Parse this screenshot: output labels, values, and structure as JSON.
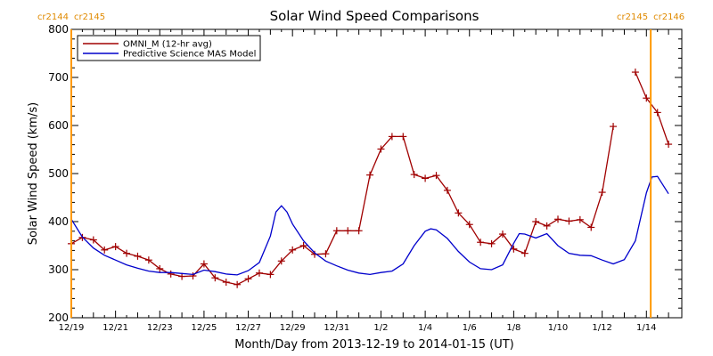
{
  "chart_data": {
    "type": "line",
    "title": "Solar Wind Speed Comparisons",
    "xlabel": "Month/Day from 2013-12-19 to 2014-01-15 (UT)",
    "ylabel": "Solar Wind Speed (km/s)",
    "xlim": [
      "2013-12-19",
      "2014-01-15"
    ],
    "ylim": [
      200,
      800
    ],
    "yticks": [
      200,
      300,
      400,
      500,
      600,
      700,
      800
    ],
    "xticks": [
      {
        "date": "2013-12-19",
        "label": "12/19"
      },
      {
        "date": "2013-12-21",
        "label": "12/21"
      },
      {
        "date": "2013-12-23",
        "label": "12/23"
      },
      {
        "date": "2013-12-25",
        "label": "12/25"
      },
      {
        "date": "2013-12-27",
        "label": "12/27"
      },
      {
        "date": "2013-12-29",
        "label": "12/29"
      },
      {
        "date": "2013-12-31",
        "label": "12/31"
      },
      {
        "date": "2014-01-02",
        "label": "1/2"
      },
      {
        "date": "2014-01-04",
        "label": "1/4"
      },
      {
        "date": "2014-01-06",
        "label": "1/6"
      },
      {
        "date": "2014-01-08",
        "label": "1/8"
      },
      {
        "date": "2014-01-10",
        "label": "1/10"
      },
      {
        "date": "2014-01-12",
        "label": "1/12"
      },
      {
        "date": "2014-01-14",
        "label": "1/14"
      }
    ],
    "legend_position": "top-left",
    "carrington_markers": [
      {
        "date": "2013-12-19",
        "label_left": "cr2144",
        "label_right": "cr2145",
        "side": "left"
      },
      {
        "date": "2014-01-15",
        "label_left": "cr2145",
        "label_right": "cr2146",
        "side": "right"
      }
    ],
    "series": [
      {
        "name": "OMNI_M (12-hr avg)",
        "color": "#a00000",
        "marker": "plus",
        "segments": [
          [
            [
              "2013-12-19 00:00",
              354
            ],
            [
              "2013-12-19 12:00",
              367
            ],
            [
              "2013-12-20 00:00",
              362
            ],
            [
              "2013-12-20 12:00",
              341
            ],
            [
              "2013-12-21 00:00",
              348
            ],
            [
              "2013-12-21 12:00",
              334
            ],
            [
              "2013-12-22 00:00",
              328
            ],
            [
              "2013-12-22 12:00",
              320
            ],
            [
              "2013-12-23 00:00",
              302
            ],
            [
              "2013-12-23 12:00",
              291
            ],
            [
              "2013-12-24 00:00",
              286
            ],
            [
              "2013-12-24 12:00",
              287
            ],
            [
              "2013-12-25 00:00",
              312
            ],
            [
              "2013-12-25 12:00",
              283
            ],
            [
              "2013-12-26 00:00",
              274
            ],
            [
              "2013-12-26 12:00",
              269
            ],
            [
              "2013-12-27 00:00",
              281
            ],
            [
              "2013-12-27 12:00",
              293
            ],
            [
              "2013-12-28 00:00",
              290
            ],
            [
              "2013-12-28 12:00",
              318
            ],
            [
              "2013-12-29 00:00",
              341
            ],
            [
              "2013-12-29 12:00",
              350
            ],
            [
              "2013-12-30 00:00",
              332
            ],
            [
              "2013-12-30 12:00",
              333
            ],
            [
              "2013-12-31 00:00",
              381
            ],
            [
              "2013-12-31 12:00",
              381
            ],
            [
              "2014-01-01 00:00",
              381
            ],
            [
              "2014-01-01 12:00",
              497
            ],
            [
              "2014-01-02 00:00",
              551
            ],
            [
              "2014-01-02 12:00",
              577
            ],
            [
              "2014-01-03 00:00",
              577
            ],
            [
              "2014-01-03 12:00",
              498
            ],
            [
              "2014-01-04 00:00",
              490
            ],
            [
              "2014-01-04 12:00",
              496
            ],
            [
              "2014-01-05 00:00",
              465
            ],
            [
              "2014-01-05 12:00",
              418
            ],
            [
              "2014-01-06 00:00",
              394
            ],
            [
              "2014-01-06 12:00",
              357
            ],
            [
              "2014-01-07 00:00",
              354
            ],
            [
              "2014-01-07 12:00",
              374
            ],
            [
              "2014-01-08 00:00",
              343
            ],
            [
              "2014-01-08 12:00",
              334
            ],
            [
              "2014-01-09 00:00",
              400
            ],
            [
              "2014-01-09 12:00",
              391
            ],
            [
              "2014-01-10 00:00",
              405
            ],
            [
              "2014-01-10 12:00",
              401
            ],
            [
              "2014-01-11 00:00",
              404
            ],
            [
              "2014-01-11 12:00",
              388
            ],
            [
              "2014-01-12 00:00",
              461
            ],
            [
              "2014-01-12 12:00",
              598
            ]
          ],
          [
            [
              "2014-01-13 12:00",
              711
            ],
            [
              "2014-01-14 00:00",
              657
            ],
            [
              "2014-01-14 12:00",
              627
            ],
            [
              "2014-01-15 00:00",
              561
            ]
          ]
        ]
      },
      {
        "name": "Predictive Science MAS Model",
        "color": "#0000cc",
        "marker": "none",
        "segments": [
          [
            [
              "2013-12-19 00:00",
              405
            ],
            [
              "2013-12-19 12:00",
              368
            ],
            [
              "2013-12-20 00:00",
              345
            ],
            [
              "2013-12-20 12:00",
              330
            ],
            [
              "2013-12-21 00:00",
              320
            ],
            [
              "2013-12-21 12:00",
              310
            ],
            [
              "2013-12-22 00:00",
              303
            ],
            [
              "2013-12-22 12:00",
              297
            ],
            [
              "2013-12-23 00:00",
              294
            ],
            [
              "2013-12-23 12:00",
              294
            ],
            [
              "2013-12-24 00:00",
              292
            ],
            [
              "2013-12-24 12:00",
              290
            ],
            [
              "2013-12-25 00:00",
              299
            ],
            [
              "2013-12-25 12:00",
              296
            ],
            [
              "2013-12-26 00:00",
              291
            ],
            [
              "2013-12-26 12:00",
              289
            ],
            [
              "2013-12-27 00:00",
              298
            ],
            [
              "2013-12-27 12:00",
              315
            ],
            [
              "2013-12-28 00:00",
              370
            ],
            [
              "2013-12-28 06:00",
              420
            ],
            [
              "2013-12-28 12:00",
              433
            ],
            [
              "2013-12-28 18:00",
              420
            ],
            [
              "2013-12-29 00:00",
              395
            ],
            [
              "2013-12-29 12:00",
              360
            ],
            [
              "2013-12-30 00:00",
              335
            ],
            [
              "2013-12-30 12:00",
              318
            ],
            [
              "2013-12-31 00:00",
              308
            ],
            [
              "2013-12-31 12:00",
              299
            ],
            [
              "2014-01-01 00:00",
              293
            ],
            [
              "2014-01-01 12:00",
              290
            ],
            [
              "2014-01-02 00:00",
              294
            ],
            [
              "2014-01-02 12:00",
              297
            ],
            [
              "2014-01-03 00:00",
              312
            ],
            [
              "2014-01-03 12:00",
              350
            ],
            [
              "2014-01-04 00:00",
              380
            ],
            [
              "2014-01-04 06:00",
              385
            ],
            [
              "2014-01-04 12:00",
              383
            ],
            [
              "2014-01-05 00:00",
              365
            ],
            [
              "2014-01-05 12:00",
              338
            ],
            [
              "2014-01-06 00:00",
              316
            ],
            [
              "2014-01-06 12:00",
              302
            ],
            [
              "2014-01-07 00:00",
              300
            ],
            [
              "2014-01-07 12:00",
              310
            ],
            [
              "2014-01-08 00:00",
              355
            ],
            [
              "2014-01-08 06:00",
              375
            ],
            [
              "2014-01-08 12:00",
              374
            ],
            [
              "2014-01-09 00:00",
              366
            ],
            [
              "2014-01-09 12:00",
              375
            ],
            [
              "2014-01-10 00:00",
              350
            ],
            [
              "2014-01-10 12:00",
              334
            ],
            [
              "2014-01-11 00:00",
              330
            ],
            [
              "2014-01-11 12:00",
              329
            ],
            [
              "2014-01-12 00:00",
              320
            ],
            [
              "2014-01-12 12:00",
              312
            ],
            [
              "2014-01-13 00:00",
              321
            ],
            [
              "2014-01-13 12:00",
              360
            ],
            [
              "2014-01-14 00:00",
              460
            ],
            [
              "2014-01-14 06:00",
              493
            ],
            [
              "2014-01-14 12:00",
              494
            ],
            [
              "2014-01-15 00:00",
              458
            ]
          ]
        ]
      }
    ]
  },
  "colors": {
    "background": "#ffffff",
    "axis": "#000000",
    "carrington_line": "#ff9900",
    "carrington_text": "#e08a00"
  }
}
